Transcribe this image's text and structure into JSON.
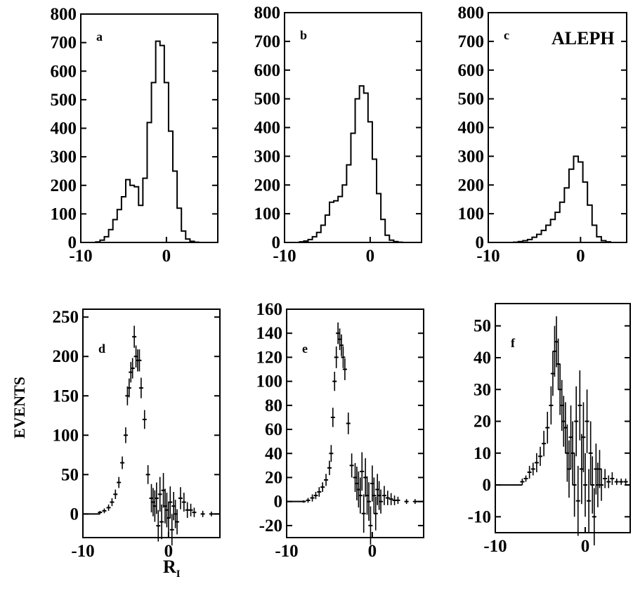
{
  "figure": {
    "ylabel": "EVENTS",
    "xlabel_main": "R",
    "xlabel_sub": "I",
    "experiment_label": "ALEPH"
  },
  "chart_data": [
    {
      "id": "a",
      "type": "line",
      "style": "histogram",
      "label": "a",
      "xlim": [
        -10,
        6
      ],
      "ylim": [
        0,
        800
      ],
      "xticks": [
        -10,
        0
      ],
      "xtick_labels": [
        "-10",
        "0"
      ],
      "yticks": [
        0,
        100,
        200,
        300,
        400,
        500,
        600,
        700,
        800
      ],
      "ytick_labels": [
        "0",
        "100",
        "200",
        "300",
        "400",
        "500",
        "600",
        "700",
        "800"
      ],
      "x": [
        -8,
        -7.5,
        -7,
        -6.5,
        -6,
        -5.5,
        -5,
        -4.5,
        -4,
        -3.5,
        -3,
        -2.5,
        -2,
        -1.5,
        -1,
        -0.5,
        0,
        0.5,
        1,
        1.5,
        2,
        2.5,
        3,
        3.5
      ],
      "y": [
        2,
        8,
        20,
        45,
        80,
        115,
        160,
        220,
        200,
        195,
        130,
        225,
        420,
        560,
        705,
        690,
        560,
        390,
        250,
        120,
        40,
        12,
        4,
        1
      ]
    },
    {
      "id": "b",
      "type": "line",
      "style": "histogram",
      "label": "b",
      "xlim": [
        -10,
        6
      ],
      "ylim": [
        0,
        800
      ],
      "xticks": [
        -10,
        0
      ],
      "xtick_labels": [
        "-10",
        "0"
      ],
      "yticks": [
        0,
        100,
        200,
        300,
        400,
        500,
        600,
        700,
        800
      ],
      "ytick_labels": [
        "0",
        "100",
        "200",
        "300",
        "400",
        "500",
        "600",
        "700",
        "800"
      ],
      "x": [
        -8,
        -7.5,
        -7,
        -6.5,
        -6,
        -5.5,
        -5,
        -4.5,
        -4,
        -3.5,
        -3,
        -2.5,
        -2,
        -1.5,
        -1,
        -0.5,
        0,
        0.5,
        1,
        1.5,
        2,
        2.5,
        3,
        3.5
      ],
      "y": [
        2,
        5,
        10,
        20,
        35,
        60,
        95,
        140,
        145,
        160,
        200,
        270,
        380,
        500,
        545,
        520,
        420,
        290,
        170,
        80,
        25,
        8,
        3,
        1
      ]
    },
    {
      "id": "c",
      "type": "line",
      "style": "histogram",
      "label": "c",
      "xlim": [
        -10,
        5
      ],
      "ylim": [
        0,
        800
      ],
      "xticks": [
        -10,
        0
      ],
      "xtick_labels": [
        "-10",
        "0"
      ],
      "yticks": [
        0,
        100,
        200,
        300,
        400,
        500,
        600,
        700,
        800
      ],
      "ytick_labels": [
        "0",
        "100",
        "200",
        "300",
        "400",
        "500",
        "600",
        "700",
        "800"
      ],
      "x": [
        -7,
        -6.5,
        -6,
        -5.5,
        -5,
        -4.5,
        -4,
        -3.5,
        -3,
        -2.5,
        -2,
        -1.5,
        -1,
        -0.5,
        0,
        0.5,
        1,
        1.5,
        2,
        2.5,
        3
      ],
      "y": [
        1,
        3,
        6,
        10,
        18,
        28,
        42,
        60,
        80,
        105,
        140,
        190,
        255,
        300,
        280,
        210,
        130,
        60,
        20,
        6,
        2
      ]
    },
    {
      "id": "d",
      "type": "scatter",
      "style": "errorbar",
      "label": "d",
      "xlim": [
        -10,
        6
      ],
      "ylim": [
        -30,
        260
      ],
      "xticks": [
        -10,
        0
      ],
      "xtick_labels": [
        "-10",
        "0"
      ],
      "yticks": [
        0,
        50,
        100,
        150,
        200,
        250
      ],
      "ytick_labels": [
        "0",
        "50",
        "100",
        "150",
        "200",
        "250"
      ],
      "x": [
        -8,
        -7.5,
        -7,
        -6.6,
        -6.2,
        -5.8,
        -5.4,
        -5.0,
        -4.8,
        -4.6,
        -4.4,
        -4.2,
        -4.0,
        -3.8,
        -3.6,
        -3.4,
        -3.2,
        -2.8,
        -2.4,
        -2.0,
        -1.8,
        -1.6,
        -1.4,
        -1.2,
        -1.0,
        -0.8,
        -0.6,
        -0.4,
        -0.2,
        0,
        0.2,
        0.4,
        0.6,
        0.8,
        1.0,
        1.4,
        1.8,
        2.2,
        2.6,
        3.0,
        4,
        5
      ],
      "y": [
        2,
        4,
        8,
        15,
        25,
        40,
        65,
        100,
        150,
        160,
        180,
        185,
        225,
        200,
        195,
        195,
        160,
        120,
        50,
        20,
        15,
        10,
        20,
        -15,
        25,
        -10,
        30,
        10,
        5,
        -5,
        15,
        -20,
        10,
        0,
        -10,
        20,
        15,
        5,
        5,
        2,
        0,
        0
      ],
      "yerr": [
        2,
        3,
        4,
        5,
        6,
        7,
        8,
        10,
        12,
        12,
        13,
        13,
        14,
        14,
        14,
        14,
        13,
        12,
        12,
        18,
        18,
        20,
        20,
        20,
        22,
        22,
        22,
        22,
        22,
        20,
        20,
        20,
        18,
        18,
        16,
        14,
        12,
        10,
        8,
        6,
        4,
        3
      ]
    },
    {
      "id": "e",
      "type": "scatter",
      "style": "errorbar",
      "label": "e",
      "xlim": [
        -10,
        6
      ],
      "ylim": [
        -30,
        160
      ],
      "xticks": [
        -10,
        0
      ],
      "xtick_labels": [
        "-10",
        "0"
      ],
      "yticks": [
        -20,
        0,
        20,
        40,
        60,
        80,
        100,
        120,
        140,
        160
      ],
      "ytick_labels": [
        "-20",
        "0",
        "20",
        "40",
        "60",
        "80",
        "100",
        "120",
        "140",
        "160"
      ],
      "x": [
        -8,
        -7.5,
        -7,
        -6.6,
        -6.2,
        -5.8,
        -5.4,
        -5.0,
        -4.8,
        -4.6,
        -4.4,
        -4.2,
        -4.0,
        -3.8,
        -3.6,
        -3.4,
        -3.2,
        -2.8,
        -2.4,
        -2.0,
        -1.8,
        -1.6,
        -1.4,
        -1.2,
        -1.0,
        -0.8,
        -0.6,
        -0.4,
        -0.2,
        0,
        0.2,
        0.4,
        0.6,
        0.8,
        1.0,
        1.4,
        1.8,
        2.2,
        2.6,
        3.0,
        4,
        5
      ],
      "y": [
        0,
        1,
        3,
        5,
        8,
        12,
        18,
        28,
        40,
        70,
        100,
        120,
        140,
        135,
        130,
        120,
        110,
        65,
        30,
        20,
        15,
        10,
        5,
        25,
        -10,
        20,
        5,
        0,
        -20,
        15,
        5,
        -10,
        10,
        5,
        0,
        5,
        3,
        2,
        1,
        1,
        0,
        0
      ],
      "yerr": [
        1,
        2,
        3,
        3,
        4,
        4,
        5,
        6,
        7,
        8,
        8,
        9,
        9,
        9,
        9,
        9,
        9,
        9,
        10,
        12,
        14,
        15,
        15,
        16,
        16,
        16,
        16,
        16,
        16,
        15,
        15,
        14,
        13,
        12,
        10,
        8,
        6,
        5,
        4,
        3,
        2,
        2
      ]
    },
    {
      "id": "f",
      "type": "scatter",
      "style": "errorbar",
      "label": "f",
      "xlim": [
        -10,
        5
      ],
      "ylim": [
        -15,
        57
      ],
      "xticks": [
        -10,
        0
      ],
      "xtick_labels": [
        "-10",
        "0"
      ],
      "yticks": [
        -10,
        0,
        10,
        20,
        30,
        40,
        50
      ],
      "ytick_labels": [
        "-10",
        "0",
        "10",
        "20",
        "30",
        "40",
        "50"
      ],
      "x": [
        -7,
        -6.6,
        -6.2,
        -5.8,
        -5.4,
        -5.0,
        -4.6,
        -4.2,
        -3.8,
        -3.6,
        -3.4,
        -3.2,
        -3.0,
        -2.8,
        -2.6,
        -2.4,
        -2.2,
        -2.0,
        -1.8,
        -1.6,
        -1.4,
        -1.2,
        -1.0,
        -0.8,
        -0.6,
        -0.4,
        -0.2,
        0,
        0.2,
        0.4,
        0.6,
        0.8,
        1.0,
        1.2,
        1.4,
        1.6,
        1.8,
        2.2,
        2.6,
        3.0,
        3.5,
        4.0,
        4.5
      ],
      "y": [
        1,
        2,
        4,
        5,
        7,
        9,
        13,
        18,
        25,
        35,
        42,
        45,
        38,
        30,
        25,
        20,
        18,
        10,
        5,
        15,
        10,
        0,
        20,
        -5,
        25,
        5,
        15,
        0,
        20,
        -5,
        10,
        0,
        -10,
        5,
        0,
        5,
        0,
        2,
        1,
        2,
        1,
        1,
        1
      ],
      "yerr": [
        1,
        1,
        2,
        2,
        3,
        3,
        4,
        5,
        6,
        7,
        8,
        8,
        8,
        8,
        8,
        8,
        8,
        9,
        9,
        10,
        10,
        10,
        11,
        11,
        11,
        11,
        11,
        10,
        10,
        10,
        10,
        9,
        9,
        8,
        7,
        6,
        5,
        3,
        2,
        2,
        1,
        1,
        1
      ]
    }
  ]
}
